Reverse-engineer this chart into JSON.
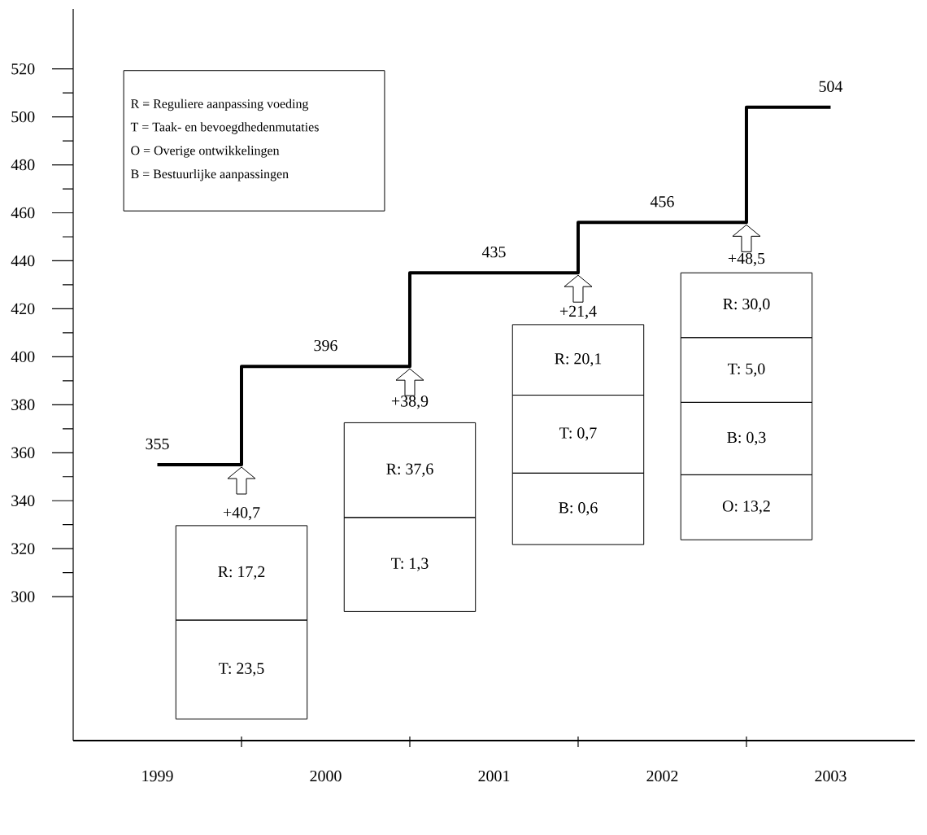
{
  "chart_data": {
    "type": "step",
    "categories": [
      "1999",
      "2000",
      "2001",
      "2002",
      "2003"
    ],
    "values": [
      355,
      396,
      435,
      456,
      504
    ],
    "color": "#000000",
    "ylim": [
      240,
      545
    ],
    "yticks": [
      300,
      {
        "value": 310,
        "label": null
      },
      320,
      {
        "value": 330,
        "label": null
      },
      340,
      {
        "value": 350,
        "label": null
      },
      360,
      {
        "value": 370,
        "label": null
      },
      380,
      {
        "value": 390,
        "label": null
      },
      400,
      {
        "value": 410,
        "label": null
      },
      420,
      {
        "value": 430,
        "label": null
      },
      440,
      {
        "value": 450,
        "label": null
      },
      460,
      {
        "value": 470,
        "label": null
      },
      480,
      {
        "value": 490,
        "label": null
      },
      500,
      {
        "value": 510,
        "label": null
      },
      520
    ],
    "data_labels": true,
    "annotations": [
      "R = Reguliere aanpassing voeding",
      "T = Taak- en bevoegdhedenmutaties",
      "O = Overige ontwikkelingen",
      "B = Bestuurlijke aanpassingen",
      "+40,7",
      "R: 17,2",
      "T: 23,5",
      "+38,9",
      "R: 37,6",
      "T: 1,3",
      "+21,4",
      "R: 20,1",
      "T: 0,7",
      "B: 0,6",
      "+48,5",
      "R: 30,0",
      "T: 5,0",
      "B: 0,3",
      "O: 13,2"
    ]
  }
}
